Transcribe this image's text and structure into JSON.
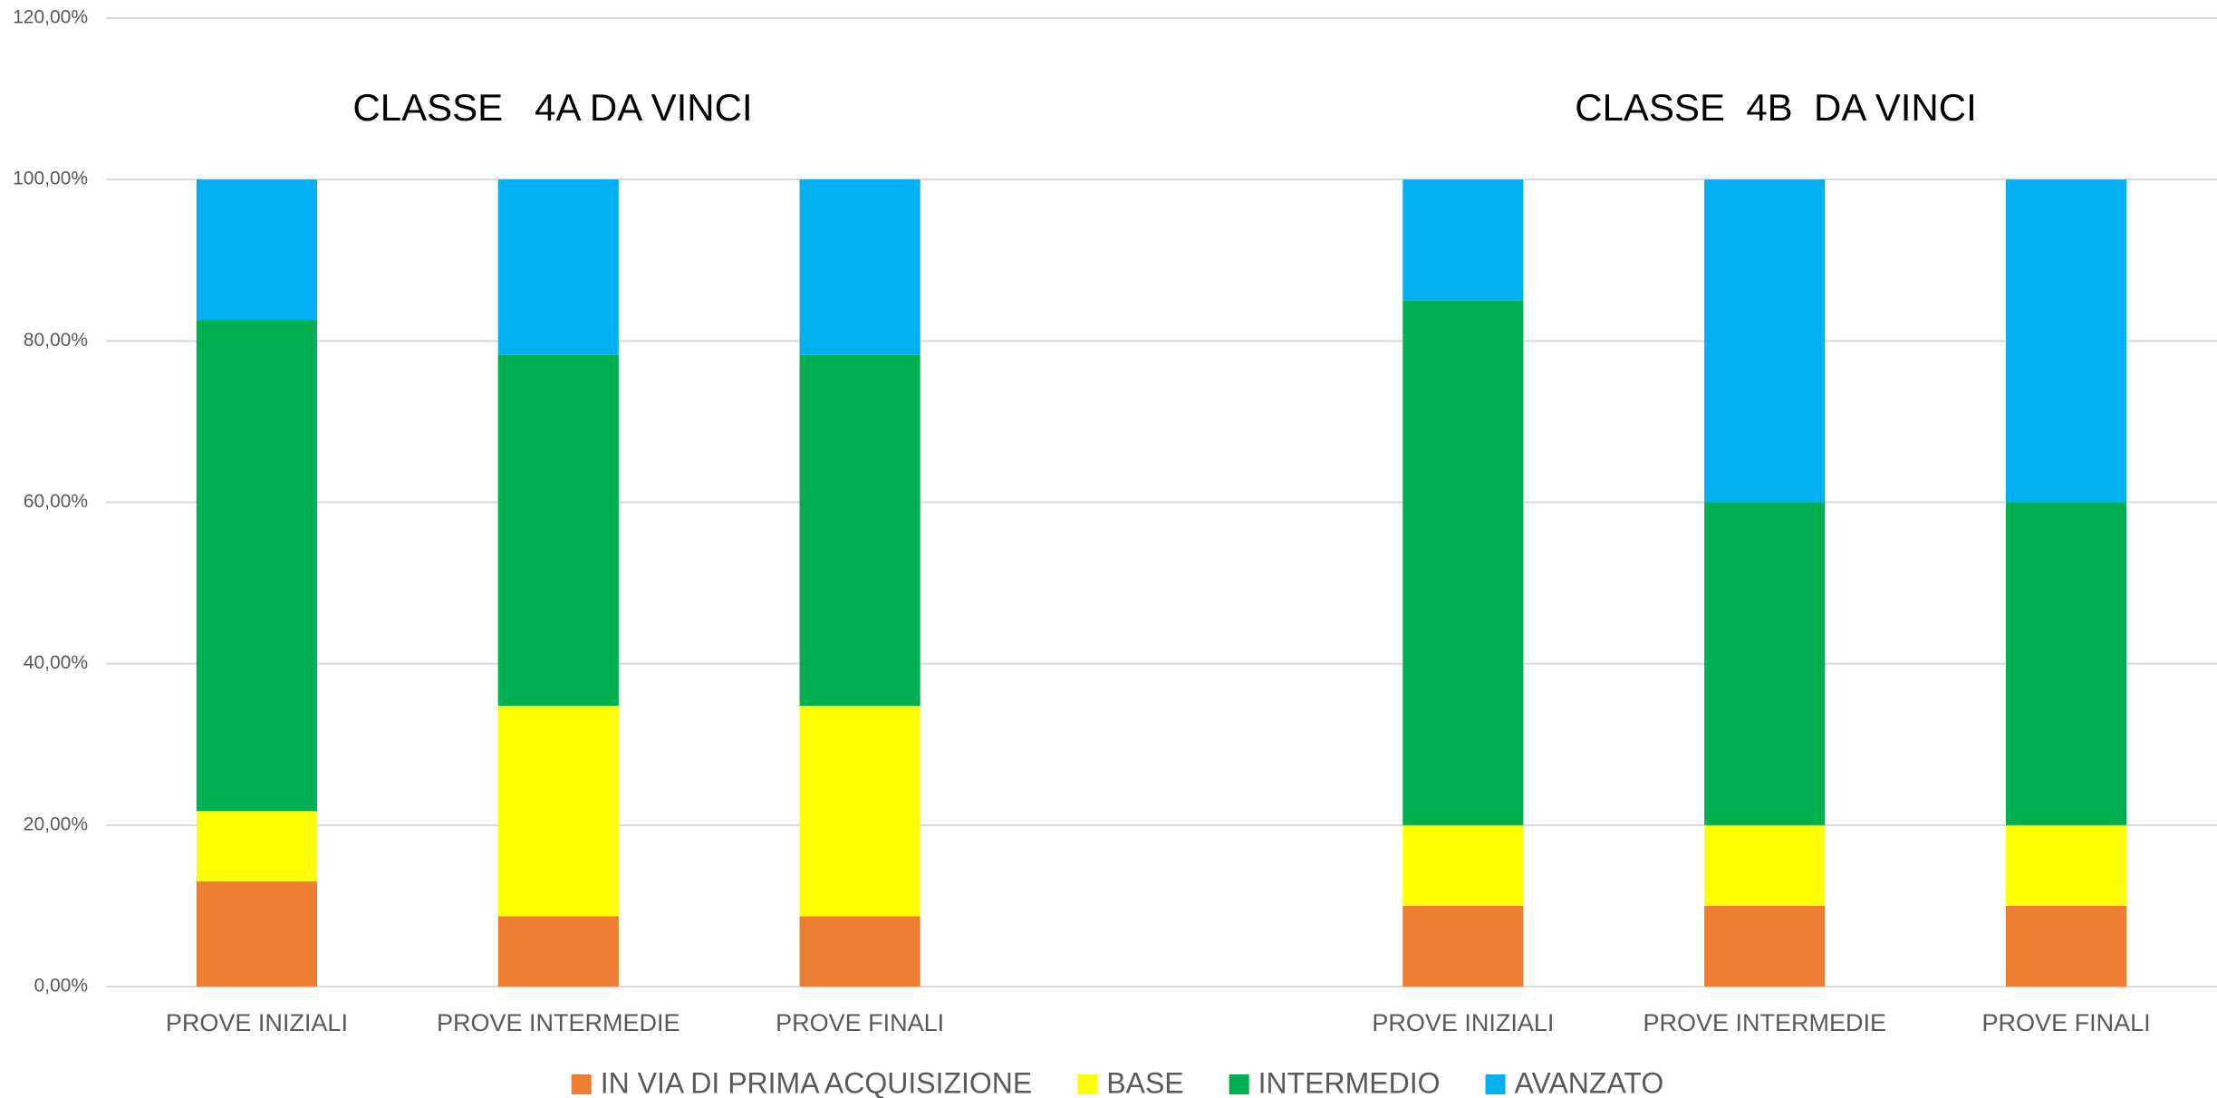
{
  "chart_data": {
    "type": "stacked_bar",
    "annotations": [
      "CLASSE   4A DA VINCI",
      "CLASSE  4B  DA VINCI"
    ],
    "categories": [
      "PROVE INIZIALI",
      "PROVE INTERMEDIE",
      "PROVE FINALI",
      null,
      "PROVE INIZIALI",
      "PROVE INTERMEDIE",
      "PROVE FINALI"
    ],
    "series": [
      {
        "name": "IN VIA DI PRIMA ACQUISIZIONE",
        "color": "#ed7d31",
        "values": [
          13.04,
          8.7,
          8.7,
          null,
          10,
          10,
          10
        ]
      },
      {
        "name": "BASE",
        "color": "#ffff00",
        "values": [
          8.7,
          26.09,
          26.09,
          null,
          10,
          10,
          10
        ]
      },
      {
        "name": "INTERMEDIO",
        "color": "#00b050",
        "values": [
          60.87,
          43.48,
          43.48,
          null,
          65,
          40,
          40
        ]
      },
      {
        "name": "AVANZATO",
        "color": "#00b0f0",
        "values": [
          17.39,
          21.74,
          21.74,
          null,
          15,
          40,
          40
        ]
      }
    ],
    "ylim": [
      0,
      120
    ],
    "yticks": [
      {
        "value": 0,
        "label": "0,00%"
      },
      {
        "value": 20,
        "label": "20,00%"
      },
      {
        "value": 40,
        "label": "40,00%"
      },
      {
        "value": 60,
        "label": "60,00%"
      },
      {
        "value": 80,
        "label": "80,00%"
      },
      {
        "value": 100,
        "label": "100,00%"
      },
      {
        "value": 120,
        "label": "120,00%"
      }
    ],
    "grid": true,
    "legend": "bottom"
  }
}
